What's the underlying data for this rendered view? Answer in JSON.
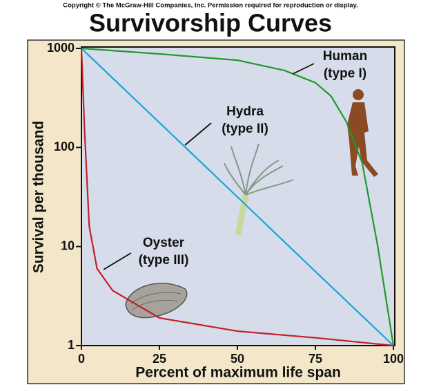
{
  "chart_data": {
    "type": "line",
    "copyright": "Copyright © The McGraw-Hill Companies, Inc. Permission required for reproduction or display.",
    "title": "Survivorship Curves",
    "x_label": "Percent of maximum life span",
    "y_label": "Survival per thousand",
    "xlim": [
      0,
      100
    ],
    "xticks": [
      0,
      25,
      50,
      75,
      100
    ],
    "ylim": [
      1,
      1000
    ],
    "yticks": [
      1,
      10,
      100,
      1000
    ],
    "y_scale": "log",
    "series": [
      {
        "name": "Human",
        "color": "#1f9a2a",
        "x": [
          0,
          25,
          50,
          65,
          75,
          80,
          85,
          90,
          95,
          100
        ],
        "values": [
          1000,
          880,
          760,
          600,
          450,
          330,
          180,
          70,
          10,
          1
        ]
      },
      {
        "name": "Hydra",
        "color": "#1aa3dd",
        "x": [
          0,
          25,
          50,
          75,
          100
        ],
        "values": [
          1000,
          178,
          31.6,
          5.6,
          1
        ]
      },
      {
        "name": "Oyster",
        "color": "#c0202a",
        "x": [
          0,
          1,
          2.5,
          5,
          10,
          25,
          50,
          75,
          100
        ],
        "values": [
          1000,
          150,
          16,
          6,
          3.6,
          1.9,
          1.4,
          1.2,
          1
        ]
      }
    ],
    "annotations": [
      {
        "lines": [
          "Human",
          "(type I)"
        ]
      },
      {
        "lines": [
          "Hydra",
          "(type II)"
        ]
      },
      {
        "lines": [
          "Oyster",
          "(type III)"
        ]
      }
    ]
  }
}
